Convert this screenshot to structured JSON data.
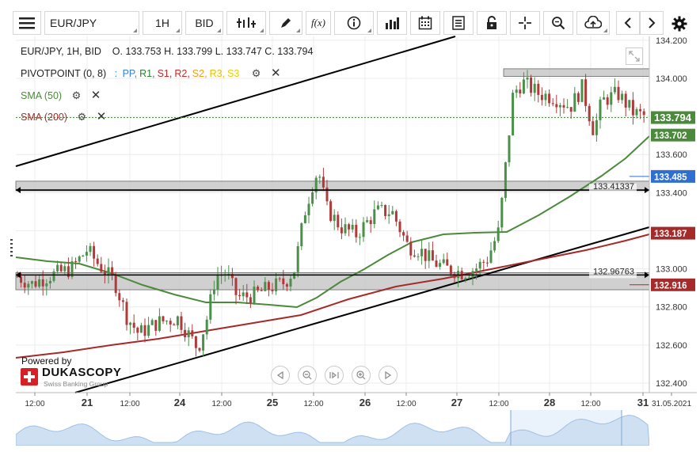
{
  "toolbar": {
    "symbol": "EUR/JPY",
    "timeframe": "1H",
    "price_side": "BID",
    "fx_label": "f(x)"
  },
  "legend": {
    "ohlc": "EUR/JPY, 1H, BID    O. 133.753 H. 133.799 L. 133.747 C. 133.794",
    "pivot_title": "PIVOTPOINT (0, 8)",
    "pivot_sep": ":",
    "pivot_items": [
      {
        "label": "PP,",
        "color": "#3c7fe0"
      },
      {
        "label": "R1,",
        "color": "#2e7d32"
      },
      {
        "label": "S1,",
        "color": "#c62828"
      },
      {
        "label": "R2,",
        "color": "#c62828"
      },
      {
        "label": "S2,",
        "color": "#f39c12"
      },
      {
        "label": "R3,",
        "color": "#e6c200"
      },
      {
        "label": "S3",
        "color": "#e6d000"
      }
    ],
    "sma50": "SMA (50)",
    "sma200": "SMA (200)"
  },
  "branding": {
    "powered": "Powered by",
    "name": "DUKASCOPY",
    "tagline": "Swiss Banking Group"
  },
  "colors": {
    "up": "#4a8f4a",
    "down": "#b03a3a",
    "sma50": "#4a8a3a",
    "sma200": "#a52a2a",
    "current": "#4a8a3a",
    "pp": "#2f6fd0"
  },
  "chart_data": {
    "type": "candlestick",
    "symbol": "EUR/JPY",
    "interval": "1H",
    "ylim": [
      132.35,
      134.22
    ],
    "y_ticks": [
      "134.200",
      "134.000",
      "133.800",
      "133.600",
      "133.400",
      "133.200",
      "133.000",
      "132.800",
      "132.600",
      "132.400"
    ],
    "x_ticks": [
      "12:00",
      "21",
      "12:00",
      "24",
      "12:00",
      "25",
      "12:00",
      "26",
      "12:00",
      "27",
      "12:00",
      "28",
      "12:00",
      "31",
      "31.05.2021"
    ],
    "price_tags": [
      {
        "label": "133.794",
        "value": 133.794,
        "color": "#4a8a3a"
      },
      {
        "label": "133.702",
        "value": 133.702,
        "color": "#4a8a3a"
      },
      {
        "label": "133.485",
        "value": 133.485,
        "color": "#2f6fd0"
      },
      {
        "label": "133.187",
        "value": 133.187,
        "color": "#a52a2a"
      },
      {
        "label": "132.916",
        "value": 132.916,
        "color": "#a52a2a"
      }
    ],
    "horizontal_levels": [
      {
        "label": "133.41337",
        "value": 133.41337
      },
      {
        "label": "132.96763",
        "value": 132.96763
      }
    ],
    "zones": [
      {
        "from": 133.41,
        "to": 133.46
      },
      {
        "from": 132.89,
        "to": 132.98
      },
      {
        "from": 134.01,
        "to": 134.05
      }
    ],
    "ohlc": {
      "open": 133.753,
      "high": 133.799,
      "low": 133.747,
      "close": 133.794
    }
  }
}
